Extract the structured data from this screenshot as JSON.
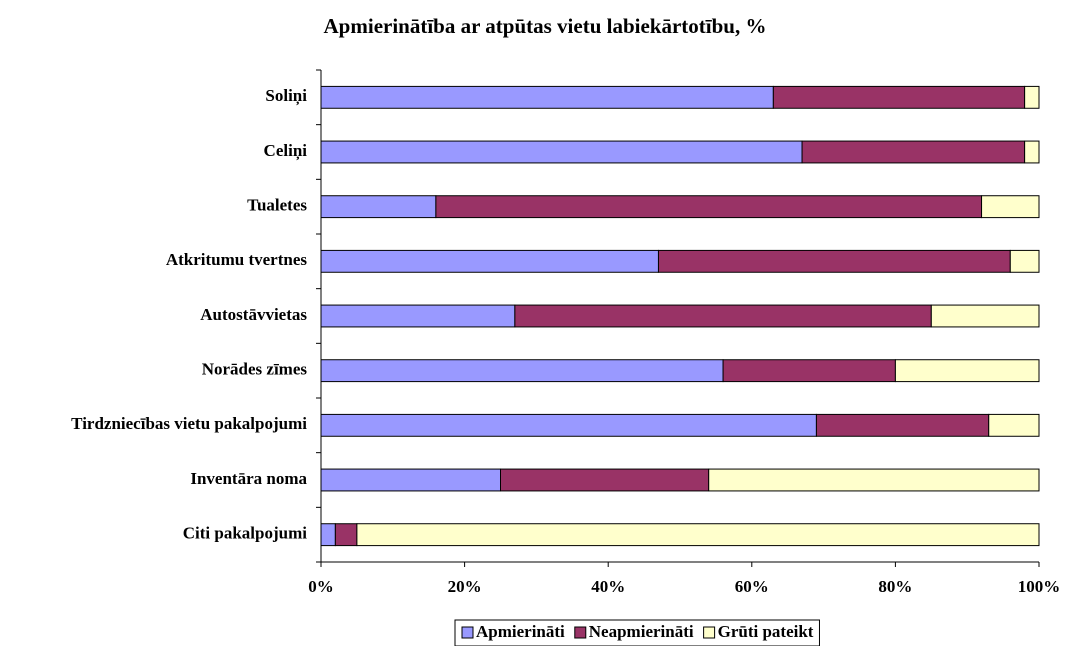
{
  "chart_data": {
    "type": "stacked-bar-horizontal",
    "title": "Apmierinātība ar atpūtas vietu labiekārtotību, %",
    "categories": [
      "Soliņi",
      "Celiņi",
      "Tualetes",
      "Atkritumu tvertnes",
      "Autostāvvietas",
      "Norādes zīmes",
      "Tirdzniecības vietu pakalpojumi",
      "Inventāra noma",
      "Citi pakalpojumi"
    ],
    "series": [
      {
        "name": "Apmierināti",
        "color": "#9999ff",
        "values": [
          63,
          67,
          16,
          47,
          27,
          56,
          69,
          25,
          2
        ]
      },
      {
        "name": "Neapmierināti",
        "color": "#993366",
        "values": [
          35,
          31,
          76,
          49,
          58,
          24,
          24,
          29,
          3
        ]
      },
      {
        "name": "Grūti pateikt",
        "color": "#ffffcc",
        "values": [
          2,
          2,
          8,
          4,
          15,
          20,
          7,
          46,
          95
        ]
      }
    ],
    "xlim": [
      0,
      100
    ],
    "xticks": [
      {
        "value": 0,
        "label": "0%"
      },
      {
        "value": 20,
        "label": "20%"
      },
      {
        "value": 40,
        "label": "40%"
      },
      {
        "value": 60,
        "label": "60%"
      },
      {
        "value": 80,
        "label": "80%"
      },
      {
        "value": 100,
        "label": "100%"
      }
    ],
    "legend": "bottom"
  }
}
